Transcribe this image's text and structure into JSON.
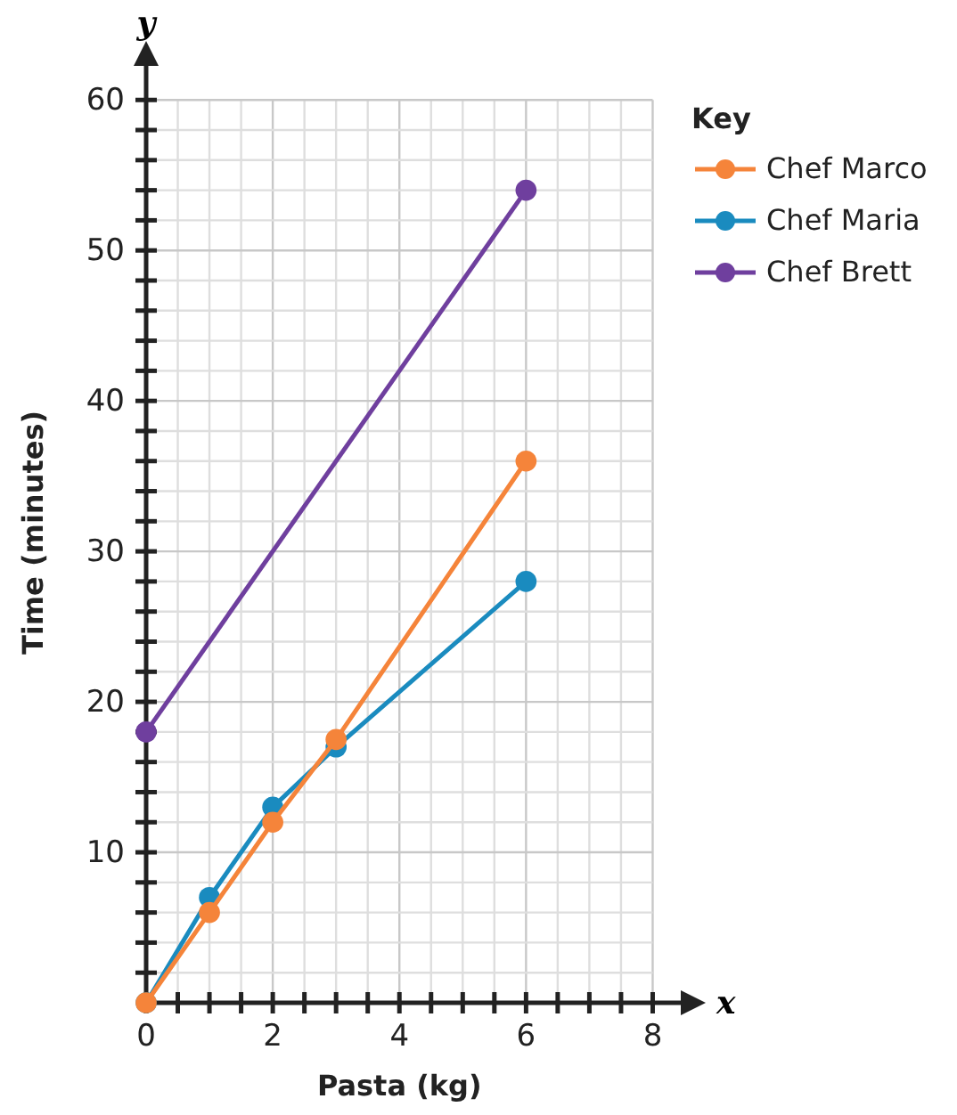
{
  "chart_data": {
    "type": "line",
    "xlabel": "Pasta (kg)",
    "ylabel": "Time (minutes)",
    "legend_title": "Key",
    "legend": "right",
    "grid": true,
    "marker": "circle",
    "line_style": "solid",
    "annotations": [
      "x",
      "y"
    ],
    "xlim": [
      0,
      8.5
    ],
    "ylim": [
      0,
      62.5
    ],
    "xticks": [
      0,
      {
        "value": 0.5,
        "label": null
      },
      {
        "value": 1,
        "label": null
      },
      {
        "value": 1.5,
        "label": null
      },
      2,
      {
        "value": 2.5,
        "label": null
      },
      {
        "value": 3,
        "label": null
      },
      {
        "value": 3.5,
        "label": null
      },
      4,
      {
        "value": 4.5,
        "label": null
      },
      {
        "value": 5,
        "label": null
      },
      {
        "value": 5.5,
        "label": null
      },
      6,
      {
        "value": 6.5,
        "label": null
      },
      {
        "value": 7,
        "label": null
      },
      {
        "value": 7.5,
        "label": null
      },
      8
    ],
    "yticks": [
      {
        "value": 2,
        "label": null
      },
      {
        "value": 4,
        "label": null
      },
      {
        "value": 6,
        "label": null
      },
      {
        "value": 8,
        "label": null
      },
      10,
      {
        "value": 12,
        "label": null
      },
      {
        "value": 14,
        "label": null
      },
      {
        "value": 16,
        "label": null
      },
      {
        "value": 18,
        "label": null
      },
      20,
      {
        "value": 22,
        "label": null
      },
      {
        "value": 24,
        "label": null
      },
      {
        "value": 26,
        "label": null
      },
      {
        "value": 28,
        "label": null
      },
      30,
      {
        "value": 32,
        "label": null
      },
      {
        "value": 34,
        "label": null
      },
      {
        "value": 36,
        "label": null
      },
      {
        "value": 38,
        "label": null
      },
      40,
      {
        "value": 42,
        "label": null
      },
      {
        "value": 44,
        "label": null
      },
      {
        "value": 46,
        "label": null
      },
      {
        "value": 48,
        "label": null
      },
      50,
      {
        "value": 52,
        "label": null
      },
      {
        "value": 54,
        "label": null
      },
      {
        "value": 56,
        "label": null
      },
      {
        "value": 58,
        "label": null
      },
      60
    ],
    "series": [
      {
        "name": "Chef Marco",
        "color": "#f5843a",
        "x": [
          0,
          1,
          2,
          3,
          6
        ],
        "values": [
          0,
          6,
          12,
          17.5,
          36
        ]
      },
      {
        "name": "Chef Maria",
        "color": "#1a8bbf",
        "x": [
          0,
          1,
          2,
          3,
          6
        ],
        "values": [
          0,
          7,
          13,
          17,
          28
        ]
      },
      {
        "name": "Chef Brett",
        "color": "#6f3f9e",
        "x": [
          0,
          6
        ],
        "values": [
          18,
          54
        ]
      }
    ]
  }
}
